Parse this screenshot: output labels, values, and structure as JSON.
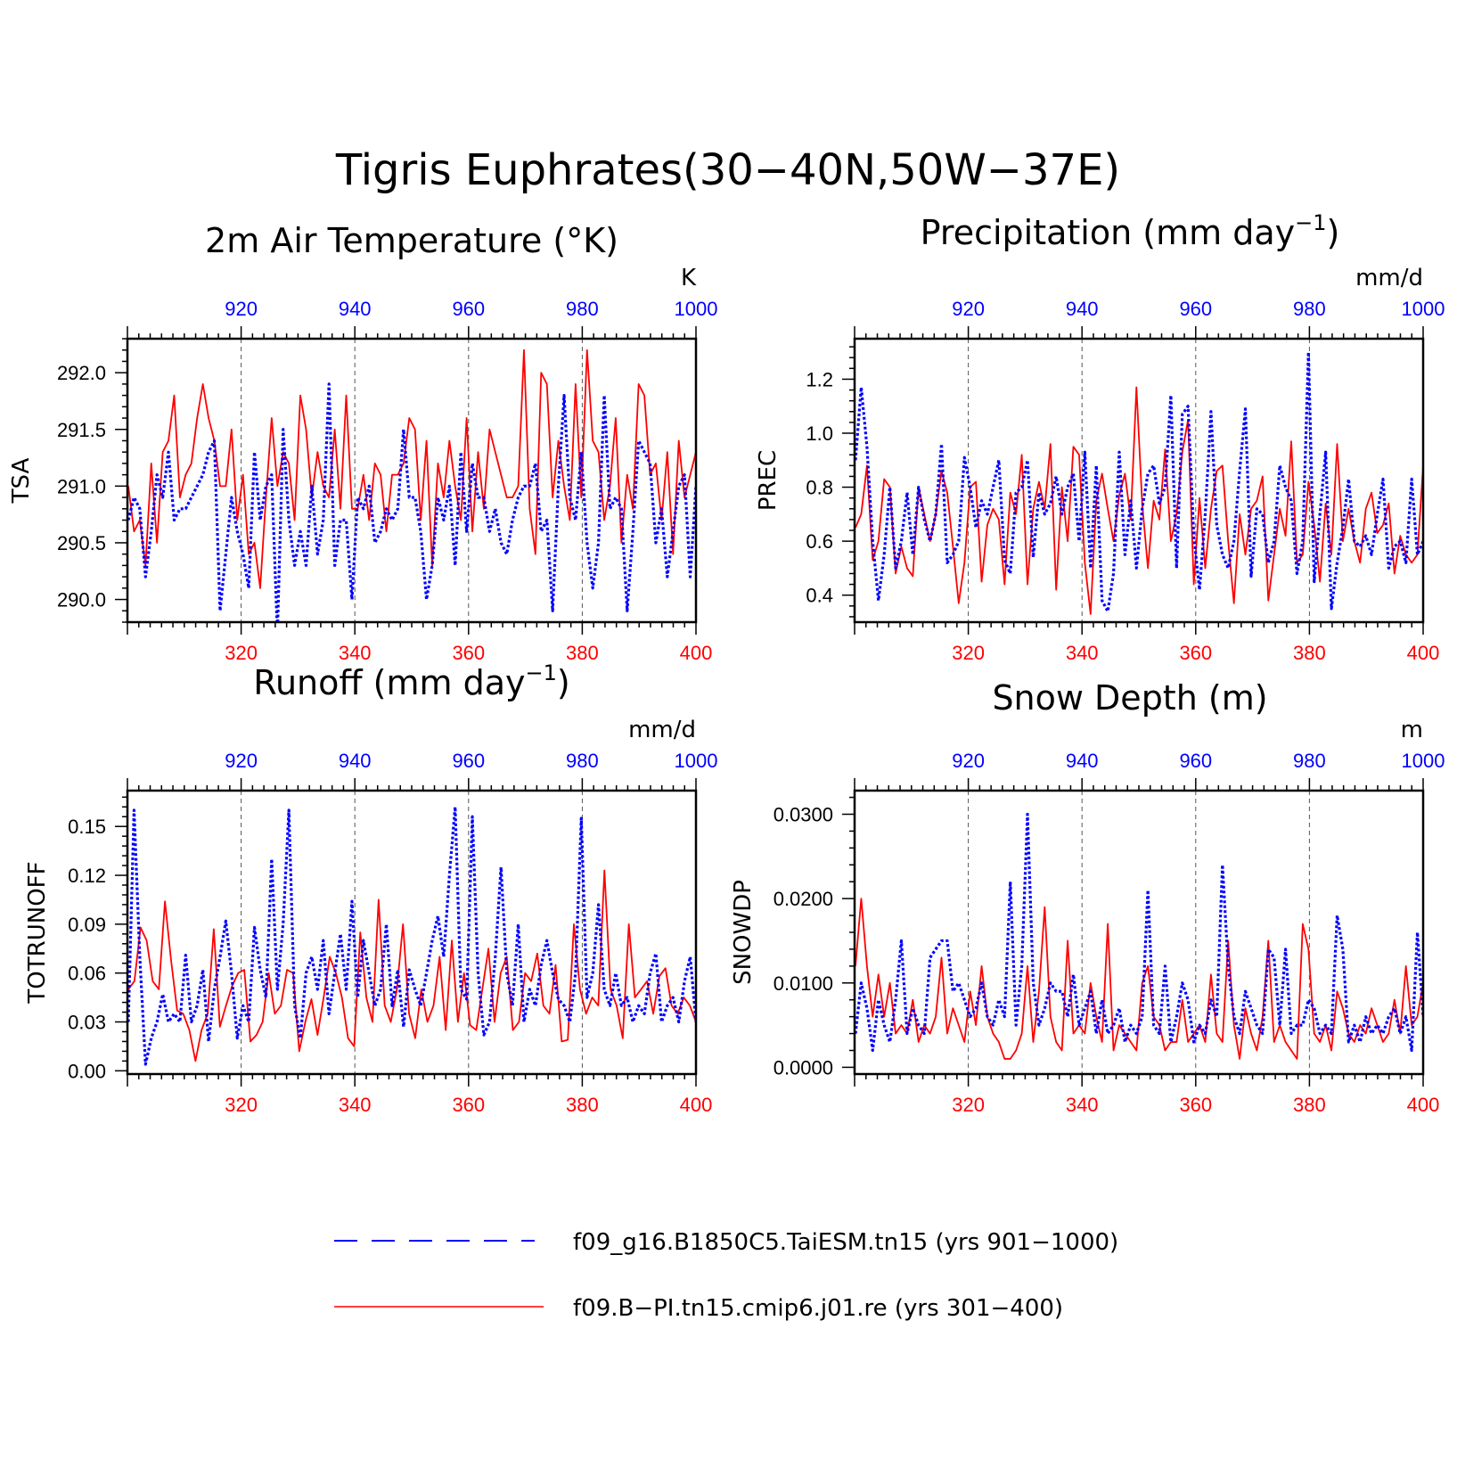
{
  "figure": {
    "title": "Tigris Euphrates(30−40N,50W−37E)"
  },
  "legend": [
    {
      "label": "f09_g16.B1850C5.TaiESM.tn15 (yrs 901−1000)",
      "color": "#0000ff",
      "style": "dashed"
    },
    {
      "label": "f09.B−PI.tn15.cmip6.j01.re (yrs 301−400)",
      "color": "#ff0000",
      "style": "solid"
    }
  ],
  "colors": {
    "series1": "#0000ff",
    "series2": "#ff0000"
  },
  "chart_data": [
    {
      "type": "line",
      "title_main": "2m Air Temperature (°K)",
      "ylabel": "TSA",
      "units": "K",
      "xlim_bottom": [
        300,
        400
      ],
      "xlim_top": [
        900,
        1000
      ],
      "xticks_bottom": [
        "320",
        "340",
        "360",
        "380",
        "400"
      ],
      "xticks_top": [
        "920",
        "940",
        "960",
        "980",
        "1000"
      ],
      "ylim": [
        289.8,
        292.3
      ],
      "yticks": [
        "290.0",
        "290.5",
        "291.0",
        "291.5",
        "292.0"
      ],
      "grid": "vertical dashed",
      "series": [
        {
          "name": "f09_g16.B1850C5.TaiESM.tn15",
          "values": [
            290.7,
            290.9,
            290.8,
            290.2,
            290.6,
            291.1,
            290.9,
            291.3,
            290.7,
            290.8,
            290.8,
            290.9,
            291.0,
            291.1,
            291.3,
            291.4,
            289.9,
            290.4,
            290.9,
            290.6,
            290.4,
            290.1,
            291.3,
            290.7,
            291.0,
            291.1,
            289.7,
            291.5,
            290.7,
            290.3,
            290.6,
            290.3,
            291.0,
            290.4,
            290.7,
            291.9,
            290.3,
            290.7,
            290.7,
            290.0,
            290.9,
            290.8,
            291.0,
            290.5,
            290.6,
            290.8,
            290.7,
            290.8,
            291.5,
            290.9,
            290.9,
            290.6,
            290.0,
            290.3,
            290.9,
            290.7,
            291.0,
            290.3,
            291.3,
            290.6,
            291.2,
            290.9,
            290.9,
            290.6,
            290.8,
            290.5,
            290.4,
            290.7,
            290.9,
            291.0,
            291.0,
            291.2,
            290.6,
            290.7,
            289.9,
            291.0,
            291.8,
            290.9,
            290.7,
            291.3,
            290.5,
            290.1,
            290.5,
            291.8,
            290.8,
            290.9,
            290.8,
            289.9,
            290.6,
            291.4,
            291.3,
            291.2,
            290.5,
            290.8,
            290.2,
            290.6,
            291.0,
            291.1,
            290.2,
            291.0
          ]
        },
        {
          "name": "f09.B−PI.tn15.cmip6.j01.re",
          "values": [
            291.0,
            290.6,
            290.7,
            290.3,
            291.2,
            290.5,
            291.3,
            291.4,
            291.8,
            290.9,
            291.1,
            291.2,
            291.6,
            291.9,
            291.6,
            291.4,
            291.0,
            291.0,
            291.5,
            290.7,
            291.1,
            290.4,
            290.5,
            290.1,
            290.9,
            291.6,
            291.0,
            291.3,
            291.2,
            290.7,
            291.8,
            291.5,
            290.9,
            291.3,
            291.0,
            290.9,
            291.5,
            290.8,
            291.8,
            290.8,
            290.8,
            291.1,
            290.7,
            291.2,
            291.1,
            290.6,
            291.1,
            291.1,
            291.2,
            291.6,
            291.5,
            290.7,
            291.4,
            290.3,
            291.2,
            290.9,
            291.4,
            291.0,
            290.7,
            291.6,
            290.6,
            291.3,
            290.8,
            291.5,
            291.3,
            291.1,
            290.9,
            290.9,
            291.0,
            292.2,
            290.8,
            290.4,
            292.0,
            291.9,
            290.9,
            291.4,
            291.0,
            290.7,
            291.9,
            290.9,
            292.2,
            291.4,
            291.3,
            290.7,
            291.0,
            291.6,
            290.5,
            291.1,
            290.8,
            291.9,
            291.8,
            291.1,
            291.2,
            290.7,
            291.3,
            290.4,
            291.4,
            290.9,
            291.1,
            291.3
          ]
        }
      ]
    },
    {
      "type": "line",
      "title_main": "Precipitation (mm day",
      "title_sup": "−1",
      "title_close": ")",
      "ylabel": "PREC",
      "units": "mm/d",
      "xlim_bottom": [
        300,
        400
      ],
      "xlim_top": [
        900,
        1000
      ],
      "xticks_bottom": [
        "320",
        "340",
        "360",
        "380",
        "400"
      ],
      "xticks_top": [
        "920",
        "940",
        "960",
        "980",
        "1000"
      ],
      "ylim": [
        0.3,
        1.35
      ],
      "yticks": [
        "0.4",
        "0.6",
        "0.8",
        "1.0",
        "1.2"
      ],
      "grid": "vertical dashed",
      "series": [
        {
          "name": "f09_g16.B1850C5.TaiESM.tn15",
          "values": [
            0.9,
            1.17,
            0.95,
            0.6,
            0.38,
            0.55,
            0.8,
            0.5,
            0.6,
            0.78,
            0.55,
            0.8,
            0.68,
            0.6,
            0.7,
            0.96,
            0.52,
            0.55,
            0.6,
            0.91,
            0.8,
            0.65,
            0.75,
            0.7,
            0.8,
            0.9,
            0.53,
            0.48,
            0.78,
            0.8,
            0.9,
            0.54,
            0.78,
            0.7,
            0.74,
            0.84,
            0.7,
            0.8,
            0.85,
            0.6,
            0.93,
            0.5,
            0.88,
            0.38,
            0.34,
            0.48,
            0.93,
            0.55,
            0.75,
            0.5,
            0.72,
            0.85,
            0.88,
            0.74,
            0.8,
            1.14,
            0.5,
            1.07,
            1.1,
            0.62,
            0.42,
            0.7,
            1.08,
            0.66,
            0.55,
            0.5,
            0.6,
            0.86,
            1.09,
            0.47,
            0.72,
            0.7,
            0.52,
            0.6,
            0.88,
            0.8,
            0.75,
            0.48,
            0.6,
            1.3,
            0.45,
            0.7,
            0.93,
            0.35,
            0.52,
            0.65,
            0.83,
            0.6,
            0.58,
            0.62,
            0.55,
            0.7,
            0.83,
            0.5,
            0.58,
            0.6,
            0.52,
            0.83,
            0.55,
            0.6
          ]
        },
        {
          "name": "f09.B−PI.tn15.cmip6.j01.re",
          "values": [
            0.65,
            0.7,
            0.88,
            0.53,
            0.6,
            0.83,
            0.8,
            0.48,
            0.58,
            0.5,
            0.47,
            0.8,
            0.7,
            0.6,
            0.7,
            0.86,
            0.78,
            0.58,
            0.37,
            0.52,
            0.8,
            0.82,
            0.45,
            0.66,
            0.72,
            0.68,
            0.44,
            0.78,
            0.7,
            0.92,
            0.44,
            0.72,
            0.82,
            0.72,
            0.96,
            0.42,
            0.8,
            0.6,
            0.95,
            0.92,
            0.52,
            0.33,
            0.75,
            0.85,
            0.72,
            0.6,
            0.77,
            0.85,
            0.68,
            1.17,
            0.74,
            0.5,
            0.75,
            0.68,
            0.94,
            0.6,
            0.7,
            0.93,
            1.05,
            0.44,
            0.76,
            0.5,
            0.72,
            0.86,
            0.88,
            0.6,
            0.37,
            0.7,
            0.55,
            0.72,
            0.75,
            0.84,
            0.38,
            0.55,
            0.72,
            0.62,
            0.97,
            0.52,
            0.55,
            0.82,
            0.66,
            0.45,
            0.74,
            0.55,
            0.96,
            0.6,
            0.72,
            0.6,
            0.52,
            0.72,
            0.78,
            0.63,
            0.66,
            0.74,
            0.48,
            0.62,
            0.55,
            0.52,
            0.55,
            0.88
          ]
        }
      ]
    },
    {
      "type": "line",
      "title_main": "Runoff (mm day",
      "title_sup": "−1",
      "title_close": ")",
      "ylabel": "TOTRUNOFF",
      "units": "mm/d",
      "xlim_bottom": [
        300,
        400
      ],
      "xlim_top": [
        900,
        1000
      ],
      "xticks_bottom": [
        "320",
        "340",
        "360",
        "380",
        "400"
      ],
      "xticks_top": [
        "920",
        "940",
        "960",
        "980",
        "1000"
      ],
      "ylim": [
        -0.002,
        0.172
      ],
      "yticks": [
        "0.00",
        "0.03",
        "0.06",
        "0.09",
        "0.12",
        "0.15"
      ],
      "grid": "vertical dashed",
      "series": [
        {
          "name": "f09_g16.B1850C5.TaiESM.tn15",
          "values": [
            0.03,
            0.16,
            0.07,
            0.004,
            0.02,
            0.03,
            0.047,
            0.03,
            0.035,
            0.03,
            0.071,
            0.03,
            0.04,
            0.062,
            0.018,
            0.05,
            0.07,
            0.092,
            0.06,
            0.02,
            0.04,
            0.03,
            0.088,
            0.062,
            0.045,
            0.13,
            0.05,
            0.09,
            0.16,
            0.04,
            0.02,
            0.06,
            0.07,
            0.05,
            0.08,
            0.035,
            0.06,
            0.084,
            0.05,
            0.104,
            0.045,
            0.08,
            0.06,
            0.04,
            0.05,
            0.09,
            0.04,
            0.062,
            0.027,
            0.062,
            0.05,
            0.04,
            0.06,
            0.08,
            0.095,
            0.07,
            0.12,
            0.162,
            0.05,
            0.044,
            0.156,
            0.06,
            0.022,
            0.03,
            0.07,
            0.125,
            0.06,
            0.04,
            0.09,
            0.03,
            0.05,
            0.04,
            0.065,
            0.08,
            0.06,
            0.044,
            0.04,
            0.03,
            0.06,
            0.155,
            0.045,
            0.06,
            0.102,
            0.05,
            0.04,
            0.06,
            0.04,
            0.045,
            0.03,
            0.04,
            0.035,
            0.06,
            0.072,
            0.03,
            0.04,
            0.045,
            0.03,
            0.055,
            0.07,
            0.03
          ]
        },
        {
          "name": "f09.B−PI.tn15.cmip6.j01.re",
          "values": [
            0.05,
            0.055,
            0.088,
            0.08,
            0.055,
            0.05,
            0.104,
            0.068,
            0.037,
            0.035,
            0.025,
            0.006,
            0.025,
            0.035,
            0.087,
            0.027,
            0.04,
            0.052,
            0.06,
            0.062,
            0.018,
            0.022,
            0.03,
            0.06,
            0.035,
            0.04,
            0.062,
            0.06,
            0.012,
            0.03,
            0.044,
            0.022,
            0.045,
            0.07,
            0.06,
            0.045,
            0.02,
            0.015,
            0.085,
            0.045,
            0.03,
            0.105,
            0.04,
            0.03,
            0.05,
            0.09,
            0.035,
            0.02,
            0.05,
            0.03,
            0.04,
            0.07,
            0.025,
            0.08,
            0.03,
            0.06,
            0.028,
            0.025,
            0.05,
            0.075,
            0.03,
            0.06,
            0.07,
            0.025,
            0.03,
            0.06,
            0.055,
            0.072,
            0.04,
            0.035,
            0.065,
            0.018,
            0.019,
            0.09,
            0.05,
            0.035,
            0.045,
            0.04,
            0.123,
            0.05,
            0.04,
            0.02,
            0.09,
            0.045,
            0.05,
            0.055,
            0.035,
            0.058,
            0.063,
            0.04,
            0.035,
            0.045,
            0.04,
            0.03
          ]
        }
      ]
    },
    {
      "type": "line",
      "title_main": "Snow Depth (m)",
      "ylabel": "SNOWDP",
      "units": "m",
      "xlim_bottom": [
        300,
        400
      ],
      "xlim_top": [
        900,
        1000
      ],
      "xticks_bottom": [
        "320",
        "340",
        "360",
        "380",
        "400"
      ],
      "xticks_top": [
        "920",
        "940",
        "960",
        "980",
        "1000"
      ],
      "ylim": [
        -0.0008,
        0.0328
      ],
      "yticks": [
        "0.0000",
        "0.0100",
        "0.0200",
        "0.0300"
      ],
      "grid": "vertical dashed",
      "series": [
        {
          "name": "f09_g16.B1850C5.TaiESM.tn15",
          "values": [
            0.004,
            0.01,
            0.007,
            0.002,
            0.008,
            0.005,
            0.003,
            0.008,
            0.015,
            0.004,
            0.007,
            0.005,
            0.004,
            0.013,
            0.014,
            0.015,
            0.015,
            0.009,
            0.01,
            0.008,
            0.006,
            0.007,
            0.01,
            0.006,
            0.005,
            0.008,
            0.006,
            0.022,
            0.005,
            0.012,
            0.03,
            0.01,
            0.005,
            0.007,
            0.01,
            0.009,
            0.009,
            0.006,
            0.011,
            0.005,
            0.007,
            0.009,
            0.004,
            0.008,
            0.004,
            0.005,
            0.007,
            0.003,
            0.005,
            0.004,
            0.006,
            0.021,
            0.005,
            0.004,
            0.012,
            0.003,
            0.006,
            0.01,
            0.008,
            0.003,
            0.005,
            0.004,
            0.008,
            0.006,
            0.024,
            0.012,
            0.006,
            0.004,
            0.009,
            0.007,
            0.005,
            0.004,
            0.014,
            0.013,
            0.005,
            0.014,
            0.004,
            0.005,
            0.005,
            0.008,
            0.007,
            0.004,
            0.005,
            0.004,
            0.018,
            0.014,
            0.003,
            0.005,
            0.003,
            0.006,
            0.004,
            0.005,
            0.004,
            0.006,
            0.007,
            0.004,
            0.006,
            0.002,
            0.016,
            0.006
          ]
        },
        {
          "name": "f09.B−PI.tn15.cmip6.j01.re",
          "values": [
            0.012,
            0.02,
            0.012,
            0.006,
            0.011,
            0.006,
            0.01,
            0.004,
            0.005,
            0.004,
            0.008,
            0.003,
            0.005,
            0.004,
            0.006,
            0.013,
            0.004,
            0.007,
            0.005,
            0.003,
            0.009,
            0.005,
            0.012,
            0.006,
            0.004,
            0.003,
            0.001,
            0.001,
            0.002,
            0.004,
            0.012,
            0.003,
            0.009,
            0.019,
            0.006,
            0.003,
            0.002,
            0.015,
            0.004,
            0.005,
            0.004,
            0.01,
            0.006,
            0.003,
            0.017,
            0.002,
            0.005,
            0.004,
            0.003,
            0.002,
            0.01,
            0.012,
            0.006,
            0.005,
            0.002,
            0.003,
            0.003,
            0.008,
            0.003,
            0.004,
            0.005,
            0.003,
            0.011,
            0.004,
            0.003,
            0.015,
            0.005,
            0.001,
            0.007,
            0.004,
            0.002,
            0.006,
            0.015,
            0.003,
            0.005,
            0.003,
            0.002,
            0.001,
            0.017,
            0.014,
            0.004,
            0.003,
            0.005,
            0.002,
            0.009,
            0.007,
            0.004,
            0.003,
            0.005,
            0.004,
            0.007,
            0.005,
            0.003,
            0.004,
            0.008,
            0.004,
            0.012,
            0.005,
            0.006,
            0.01
          ]
        }
      ]
    }
  ]
}
